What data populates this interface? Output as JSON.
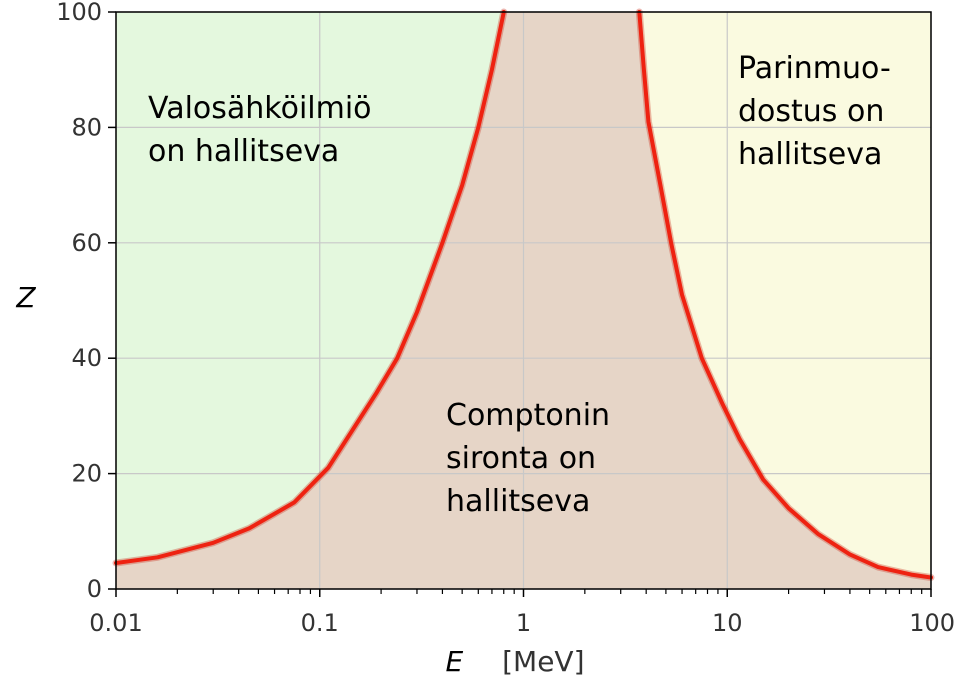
{
  "chart_data": {
    "type": "area",
    "title": "",
    "xlabel": "E",
    "xlabel_unit": "[MeV]",
    "ylabel": "Z",
    "x_scale": "log",
    "xlim": [
      0.01,
      100
    ],
    "ylim": [
      0,
      100
    ],
    "grid": true,
    "x_ticks": [
      {
        "value": 0.01,
        "label": "0.01"
      },
      {
        "value": 0.1,
        "label": "0.1"
      },
      {
        "value": 1,
        "label": "1"
      },
      {
        "value": 10,
        "label": "10"
      },
      {
        "value": 100,
        "label": "100"
      }
    ],
    "y_ticks": [
      {
        "value": 0,
        "label": "0"
      },
      {
        "value": 20,
        "label": "20"
      },
      {
        "value": 40,
        "label": "40"
      },
      {
        "value": 60,
        "label": "60"
      },
      {
        "value": 80,
        "label": "80"
      },
      {
        "value": 100,
        "label": "100"
      }
    ],
    "colors": {
      "photoelectric_region": "#e4f8de",
      "compton_region": "#e6d5c7",
      "pair_region": "#fafae0",
      "boundary_line": "#ee2211",
      "grid": "#c8c8c8"
    },
    "boundaries": [
      {
        "name": "photoelectric-compton",
        "points": [
          [
            0.01,
            4.5
          ],
          [
            0.016,
            5.5
          ],
          [
            0.03,
            8
          ],
          [
            0.045,
            10.5
          ],
          [
            0.075,
            15
          ],
          [
            0.11,
            21
          ],
          [
            0.19,
            34
          ],
          [
            0.24,
            40
          ],
          [
            0.3,
            48
          ],
          [
            0.4,
            60
          ],
          [
            0.5,
            70
          ],
          [
            0.6,
            80
          ],
          [
            0.7,
            90
          ],
          [
            0.8,
            100
          ]
        ]
      },
      {
        "name": "compton-pair",
        "points": [
          [
            3.7,
            100
          ],
          [
            3.9,
            90
          ],
          [
            4.1,
            81
          ],
          [
            4.7,
            70
          ],
          [
            5.3,
            60
          ],
          [
            6,
            51
          ],
          [
            7.5,
            40
          ],
          [
            9.5,
            32
          ],
          [
            11.5,
            26
          ],
          [
            15,
            19
          ],
          [
            20,
            14
          ],
          [
            28,
            9.5
          ],
          [
            40,
            6
          ],
          [
            55,
            3.8
          ],
          [
            80,
            2.5
          ],
          [
            100,
            2
          ]
        ]
      }
    ],
    "annotations": [
      {
        "name": "photoelectric",
        "lines": [
          "Valosähköilmiö",
          "on hallitseva"
        ]
      },
      {
        "name": "compton",
        "lines": [
          "Comptonin",
          "sironta on",
          "hallitseva"
        ]
      },
      {
        "name": "pair-production",
        "lines": [
          "Parinmuo-",
          "dostus on",
          "hallitseva"
        ]
      }
    ]
  }
}
